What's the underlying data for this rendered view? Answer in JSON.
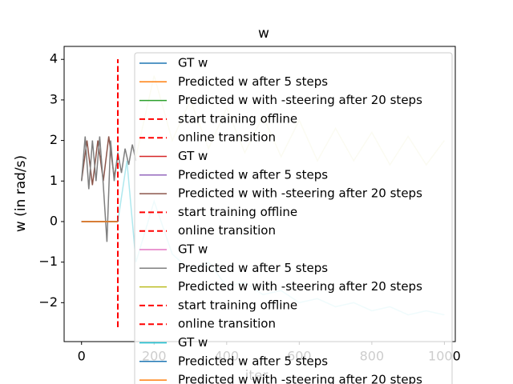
{
  "chart_data": {
    "type": "line",
    "title": "w",
    "x_label": "iter",
    "y_label": "w (in rad/s)",
    "xlim": [
      -48,
      1030
    ],
    "ylim": [
      -2.96,
      4.32
    ],
    "xticks": [
      0,
      200,
      400,
      600,
      800,
      1000
    ],
    "yticks": [
      {
        "value": -2,
        "label": "−2"
      },
      {
        "value": -1,
        "label": "−1"
      },
      0,
      1,
      2,
      3,
      4
    ],
    "grid": false,
    "legend": "upper right",
    "series": [
      {
        "name": "GT w",
        "color": "#1f77b4",
        "x": [
          0,
          100
        ],
        "values": [
          0,
          0
        ]
      },
      {
        "name": "Predicted w after 5 steps",
        "color": "#ff7f0e",
        "x": [
          0,
          100
        ],
        "values": [
          0,
          0
        ]
      },
      {
        "name": "Predicted w with -steering after 20 steps",
        "color": "#2ca02c",
        "x": [
          0,
          100
        ],
        "values": [
          0,
          0
        ]
      },
      {
        "name": "start training offline",
        "color": "#ff0000",
        "dashed": true,
        "x": [
          100,
          100
        ],
        "values": [
          -2.6,
          4
        ]
      },
      {
        "name": "online transition",
        "color": "#ff0000",
        "dashed": true,
        "x": [
          100,
          100
        ],
        "values": [
          -2.6,
          4
        ]
      },
      {
        "name": "GT w",
        "color": "#d62728",
        "x": [
          0,
          100
        ],
        "values": [
          0,
          0
        ]
      },
      {
        "name": "Predicted w after 5 steps",
        "color": "#9467bd",
        "x": [
          0,
          100
        ],
        "values": [
          0,
          0
        ]
      },
      {
        "name": "Predicted w with -steering after 20 steps",
        "color": "#8c564b",
        "x": [
          0,
          15,
          30,
          45,
          60,
          75,
          90,
          100
        ],
        "values": [
          1.0,
          2.0,
          0.9,
          2.0,
          1.0,
          2.1,
          1.1,
          1.6
        ]
      },
      {
        "name": "start training offline",
        "color": "#ff0000",
        "dashed": true,
        "x": [
          100,
          100
        ],
        "values": [
          -2.6,
          4
        ]
      },
      {
        "name": "online transition",
        "color": "#ff0000",
        "dashed": true,
        "x": [
          100,
          100
        ],
        "values": [
          -2.6,
          4
        ]
      },
      {
        "name": "GT w",
        "color": "#e377c2",
        "x": [
          0,
          100
        ],
        "values": [
          0,
          0
        ]
      },
      {
        "name": "Predicted w after 5 steps",
        "color": "#7f7f7f",
        "x": [
          0,
          10,
          20,
          30,
          40,
          50,
          60,
          70,
          80,
          90,
          100,
          110,
          120,
          130,
          140,
          150
        ],
        "values": [
          1.0,
          2.1,
          0.8,
          2.0,
          1.0,
          2.1,
          0.9,
          -0.5,
          2.0,
          1.0,
          1.7,
          1.2,
          1.8,
          1.4,
          1.9,
          1.5
        ]
      },
      {
        "name": "Predicted w with -steering after 20 steps",
        "color": "#bcbd22",
        "alpha": 0.3,
        "x": [
          150,
          200,
          250,
          300,
          350,
          400,
          450,
          500,
          550,
          600,
          650,
          700,
          750,
          800,
          850,
          900,
          950,
          1000
        ],
        "values": [
          1.6,
          3.6,
          2.0,
          3.0,
          1.8,
          2.8,
          1.7,
          2.6,
          1.6,
          2.5,
          1.5,
          2.3,
          1.5,
          2.2,
          1.4,
          2.1,
          1.4,
          2.0
        ]
      },
      {
        "name": "start training offline",
        "color": "#ff0000",
        "dashed": true,
        "x": [
          100,
          100
        ],
        "values": [
          -2.6,
          4
        ]
      },
      {
        "name": "online transition",
        "color": "#ff0000",
        "dashed": true,
        "x": [
          100,
          100
        ],
        "values": [
          -2.6,
          4
        ]
      },
      {
        "name": "GT w",
        "color": "#17becf",
        "alpha": 0.35,
        "x": [
          0,
          100,
          125,
          150,
          200,
          250,
          300,
          350,
          400,
          450,
          500,
          550,
          600,
          650,
          700,
          750,
          800,
          850,
          900,
          950,
          1000
        ],
        "values": [
          0,
          0,
          1.5,
          -1.0,
          0.5,
          -0.8,
          -1.2,
          -1.0,
          -1.6,
          -1.5,
          -1.8,
          -1.7,
          -2.0,
          -1.9,
          -2.1,
          -2.0,
          -2.2,
          -2.1,
          -2.3,
          -2.2,
          -2.3
        ]
      },
      {
        "name": "Predicted w after 5 steps",
        "color": "#1f77b4",
        "x": [
          0,
          100
        ],
        "values": [
          0,
          0
        ]
      },
      {
        "name": "Predicted w with -steering after 20 steps",
        "color": "#ff7f0e",
        "x": [
          0,
          100
        ],
        "values": [
          0,
          0
        ]
      }
    ]
  }
}
